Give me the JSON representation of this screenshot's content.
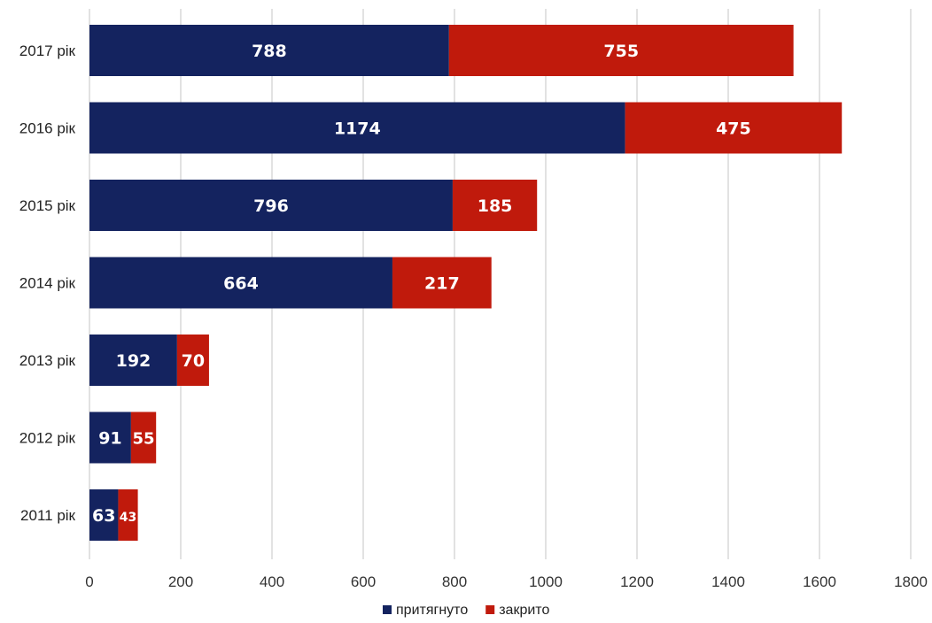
{
  "chart_data": {
    "type": "bar",
    "orientation": "horizontal",
    "stacked": true,
    "title": "",
    "xlabel": "",
    "ylabel": "",
    "categories": [
      "2017 рік",
      "2016 рік",
      "2015 рік",
      "2014 рік",
      "2013 рік",
      "2012 рік",
      "2011 рік"
    ],
    "series": [
      {
        "name": "притягнуто",
        "color": "#14235f",
        "values": [
          788,
          1174,
          796,
          664,
          192,
          91,
          63
        ]
      },
      {
        "name": "закрито",
        "color": "#c01a0c",
        "values": [
          755,
          475,
          185,
          217,
          70,
          55,
          43
        ]
      }
    ],
    "data_labels": [
      [
        "788",
        "1174",
        "796",
        "664",
        "192",
        "91",
        "63"
      ],
      [
        "755",
        "475",
        "185",
        "217",
        "70",
        "55",
        "43"
      ]
    ],
    "xlim": [
      0,
      1800
    ],
    "xticks": [
      "0",
      "200",
      "400",
      "600",
      "800",
      "1000",
      "1200",
      "1400",
      "1600",
      "1800"
    ],
    "grid": true,
    "legend_position": "bottom"
  }
}
